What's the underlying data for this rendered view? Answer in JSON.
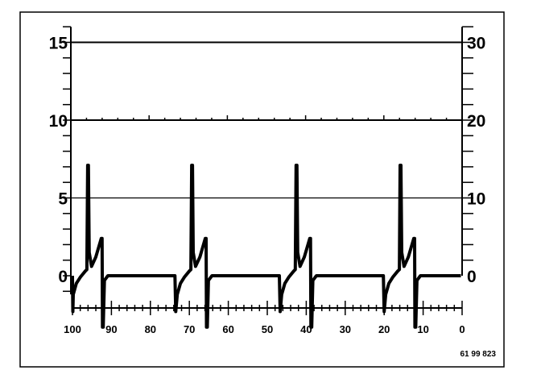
{
  "chart_data": {
    "type": "line",
    "title": "",
    "xlabel": "",
    "ylabel": "",
    "xlim": [
      100,
      0
    ],
    "ylim": [
      0,
      15
    ],
    "y2lim": [
      0,
      30
    ],
    "x_reversed": true,
    "grid": "horizontal lines at 5, 10, 15",
    "x_tick_labels": [
      "100",
      "90",
      "80",
      "70",
      "60",
      "50",
      "40",
      "30",
      "20",
      "10",
      "0"
    ],
    "y_tick_labels": [
      "0",
      "5",
      "10",
      "15"
    ],
    "y2_tick_labels": [
      "0",
      "10",
      "20",
      "30"
    ],
    "series": [
      {
        "color": "#000000",
        "points": [
          [
            100.0,
            0
          ],
          [
            99.9,
            -2.3
          ],
          [
            99.8,
            -1.2
          ],
          [
            99.0,
            -0.5
          ],
          [
            98.0,
            -0.1
          ],
          [
            96.7,
            0.3
          ],
          [
            96.3,
            0.4
          ],
          [
            96.1,
            7.1
          ],
          [
            95.9,
            7.1
          ],
          [
            95.7,
            1.5
          ],
          [
            95.1,
            0.6
          ],
          [
            94.0,
            1.2
          ],
          [
            92.6,
            2.4
          ],
          [
            92.4,
            2.4
          ],
          [
            92.3,
            -3.3
          ],
          [
            92.1,
            -3.3
          ],
          [
            91.8,
            -0.3
          ],
          [
            90.9,
            0
          ],
          [
            73.7,
            0
          ],
          [
            73.5,
            -2.3
          ],
          [
            73.1,
            -1.2
          ],
          [
            72.3,
            -0.5
          ],
          [
            71.3,
            -0.1
          ],
          [
            70.0,
            0.3
          ],
          [
            69.6,
            0.4
          ],
          [
            69.4,
            7.1
          ],
          [
            69.2,
            7.1
          ],
          [
            69.0,
            1.5
          ],
          [
            68.4,
            0.6
          ],
          [
            67.3,
            1.2
          ],
          [
            65.9,
            2.4
          ],
          [
            65.7,
            2.4
          ],
          [
            65.6,
            -3.3
          ],
          [
            65.4,
            -3.3
          ],
          [
            65.1,
            -0.3
          ],
          [
            64.2,
            0
          ],
          [
            46.9,
            0
          ],
          [
            46.7,
            -2.3
          ],
          [
            46.3,
            -1.2
          ],
          [
            45.5,
            -0.5
          ],
          [
            44.5,
            -0.1
          ],
          [
            43.2,
            0.3
          ],
          [
            42.8,
            0.4
          ],
          [
            42.6,
            7.1
          ],
          [
            42.4,
            7.1
          ],
          [
            42.2,
            1.5
          ],
          [
            41.6,
            0.6
          ],
          [
            40.5,
            1.2
          ],
          [
            39.1,
            2.4
          ],
          [
            38.9,
            2.4
          ],
          [
            38.8,
            -3.3
          ],
          [
            38.6,
            -3.3
          ],
          [
            38.3,
            -0.3
          ],
          [
            37.4,
            0
          ],
          [
            20.2,
            0
          ],
          [
            20.0,
            -2.3
          ],
          [
            19.6,
            -1.2
          ],
          [
            18.8,
            -0.5
          ],
          [
            17.8,
            -0.1
          ],
          [
            16.5,
            0.3
          ],
          [
            16.1,
            0.4
          ],
          [
            15.9,
            7.1
          ],
          [
            15.7,
            7.1
          ],
          [
            15.5,
            1.5
          ],
          [
            14.9,
            0.6
          ],
          [
            13.8,
            1.2
          ],
          [
            12.4,
            2.4
          ],
          [
            12.2,
            2.4
          ],
          [
            12.1,
            -3.3
          ],
          [
            11.9,
            -3.3
          ],
          [
            11.6,
            -0.3
          ],
          [
            10.7,
            0
          ],
          [
            0.3,
            0
          ]
        ]
      }
    ]
  },
  "figure_code": "61 99 823"
}
